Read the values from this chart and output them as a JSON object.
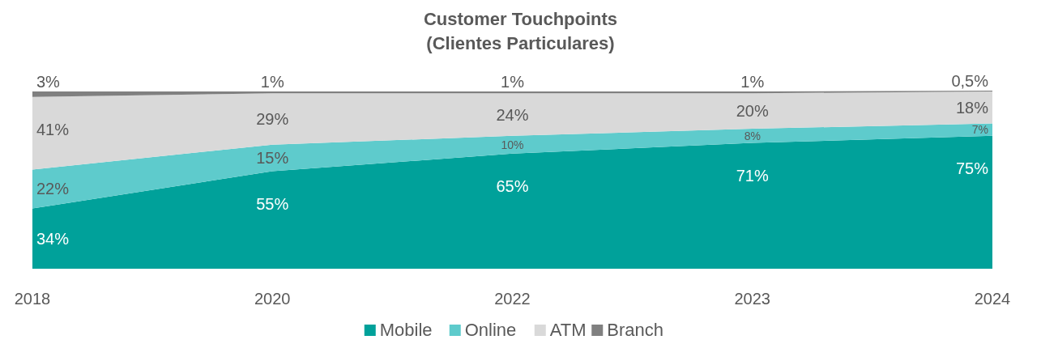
{
  "chart_data": {
    "type": "area",
    "title": "Customer Touchpoints\n(Clientes Particulares)",
    "categories": [
      "2018",
      "2020",
      "2022",
      "2023",
      "2024"
    ],
    "stacked": true,
    "legend": "bottom",
    "series": [
      {
        "name": "Mobile",
        "color": "#00a19a",
        "values": [
          34,
          55,
          65,
          71,
          75
        ],
        "value_labels": [
          "34%",
          "55%",
          "65%",
          "71%",
          "75%"
        ]
      },
      {
        "name": "Online",
        "color": "#5ecbcc",
        "values": [
          22,
          15,
          10,
          8,
          7
        ],
        "value_labels": [
          "22%",
          "15%",
          "10%",
          "8%",
          "7%"
        ]
      },
      {
        "name": "ATM",
        "color": "#d9d9d9",
        "values": [
          41,
          29,
          24,
          20,
          18
        ],
        "value_labels": [
          "41%",
          "29%",
          "24%",
          "20%",
          "18%"
        ]
      },
      {
        "name": "Branch",
        "color": "#808080",
        "values": [
          3,
          1,
          1,
          1,
          0.5
        ],
        "value_labels": [
          "3%",
          "1%",
          "1%",
          "1%",
          "0,5%"
        ]
      }
    ]
  }
}
